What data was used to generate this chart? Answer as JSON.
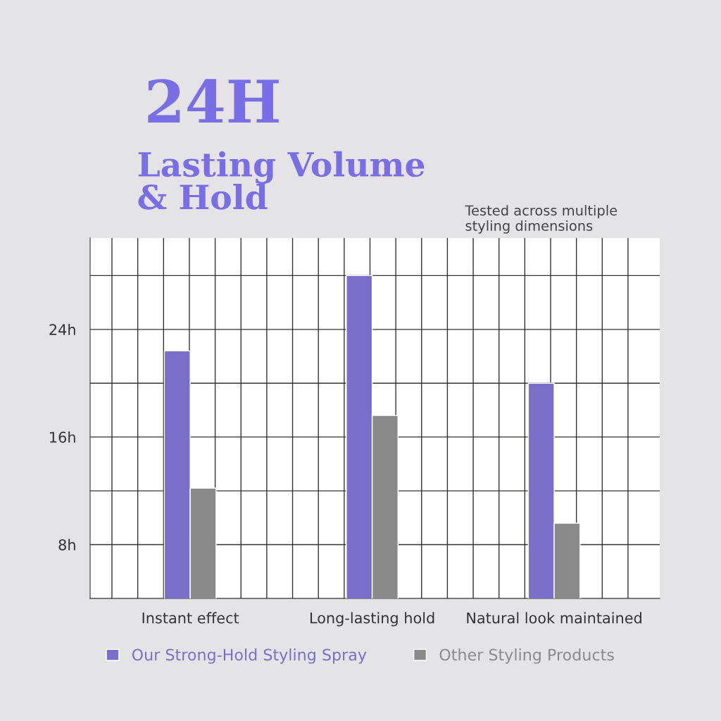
{
  "chart_data": {
    "type": "bar",
    "title": "24H",
    "subtitle": "Lasting Volume\n& Hold",
    "annotations": [
      "Tested across multiple\nstyling dimensions"
    ],
    "categories": [
      "Instant effect",
      "Long-lasting hold",
      "Natural look maintained"
    ],
    "series": [
      {
        "name": "Our Strong-Hold Styling Spray",
        "color": "#7a6ec8",
        "values": [
          22.4,
          28,
          20
        ]
      },
      {
        "name": "Other Styling Products",
        "color": "#8a8a8a",
        "values": [
          12.2,
          17.6,
          9.6
        ]
      }
    ],
    "ylim": [
      4,
      30.8
    ],
    "yticks": [
      {
        "value": 8,
        "label": "8h"
      },
      {
        "value": 12,
        "label": null
      },
      {
        "value": 16,
        "label": "16h"
      },
      {
        "value": 20,
        "label": null
      },
      {
        "value": 24,
        "label": "24h"
      },
      {
        "value": 28,
        "label": null
      }
    ],
    "grid": true,
    "legend": "bottom"
  }
}
